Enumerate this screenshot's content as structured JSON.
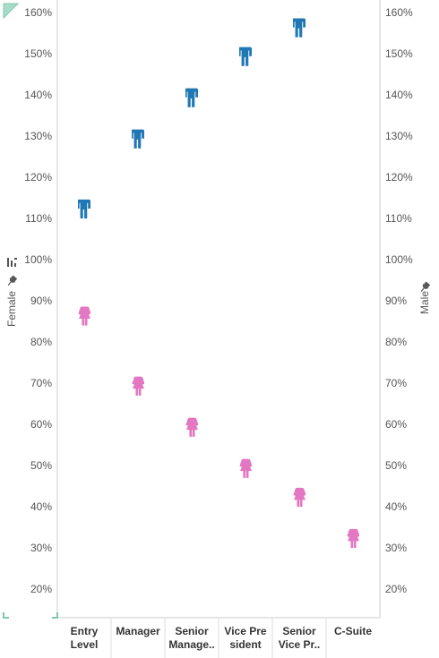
{
  "chart_data": {
    "type": "scatter",
    "categories": [
      "Entry Level",
      "Manager",
      "Senior Manage..",
      "Vice President",
      "Senior Vice Pr..",
      "C-Suite"
    ],
    "category_labels": [
      [
        "Entry",
        "Level"
      ],
      [
        "Manager"
      ],
      [
        "Senior",
        "Manage.."
      ],
      [
        "Vice Pre",
        "sident"
      ],
      [
        "Senior",
        "Vice Pr.."
      ],
      [
        "C-Suite"
      ]
    ],
    "series": [
      {
        "name": "Male",
        "color": "#1f77b4",
        "icon": "male-person-icon",
        "axis": "right",
        "values": [
          113,
          130,
          140,
          150,
          157,
          null
        ]
      },
      {
        "name": "Female",
        "color": "#e377c2",
        "icon": "female-person-icon",
        "axis": "left",
        "values": [
          87,
          70,
          60,
          50,
          43,
          33
        ]
      }
    ],
    "yticks": [
      "160%",
      "150%",
      "140%",
      "130%",
      "120%",
      "110%",
      "100%",
      "90%",
      "80%",
      "70%",
      "60%",
      "50%",
      "40%",
      "30%",
      "20%"
    ],
    "ylim": [
      13,
      162
    ],
    "left_axis_title": "Female",
    "right_axis_title": "Male",
    "grid": false,
    "legend": "none"
  },
  "colors": {
    "male": "#1f77b4",
    "female": "#e377c2",
    "axis": "#cccccc",
    "accent": "#7ec8b0"
  }
}
